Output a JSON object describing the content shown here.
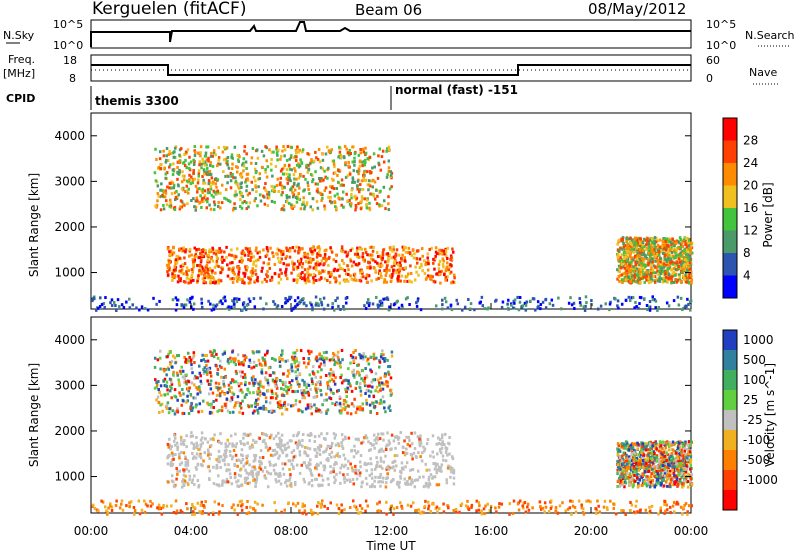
{
  "header": {
    "station": "Kerguelen (fitACF)",
    "beam": "Beam 06",
    "date": "08/May/2012"
  },
  "top_panels": {
    "nsky_label": "N.Sky",
    "nsky_tick_hi": "10^5",
    "nsky_tick_lo": "10^0",
    "nsearch_label": "N.Search",
    "freq_label_1": "Freq.",
    "freq_label_2": "[MHz]",
    "freq_tick_hi": "18",
    "freq_tick_lo": "8",
    "nave_tick_hi": "60",
    "nave_tick_lo": "0",
    "nave_label": "Nave",
    "cpid_label": "CPID",
    "cpid_1": "themis 3300",
    "cpid_2": "normal (fast) -151"
  },
  "chart_data": [
    {
      "type": "heatmap",
      "quantity": "Power",
      "ylabel": "Slant Range [km]",
      "xlabel": "Time UT",
      "xlim": [
        "00:00",
        "24:00"
      ],
      "ylim": [
        200,
        4500
      ],
      "yticks": [
        1000,
        2000,
        3000,
        4000
      ],
      "colorbar": {
        "label": "Power [dB]",
        "ticks": [
          4,
          8,
          12,
          16,
          20,
          24,
          28
        ],
        "colors": [
          "#0000ff",
          "#2b55b0",
          "#4a9a6a",
          "#43c43f",
          "#f0c020",
          "#ff8c00",
          "#ff4000",
          "#ff0000"
        ]
      },
      "regions": [
        {
          "t0": 3.0,
          "t1": 14.5,
          "r0": 800,
          "r1": 1600,
          "level": "high"
        },
        {
          "t0": 2.5,
          "t1": 12.0,
          "r0": 2400,
          "r1": 3800,
          "level": "medium"
        },
        {
          "t0": 21.0,
          "t1": 24.0,
          "r0": 800,
          "r1": 1800,
          "level": "medium"
        },
        {
          "t0": 0.0,
          "t1": 24.0,
          "r0": 200,
          "r1": 500,
          "level": "low"
        }
      ]
    },
    {
      "type": "heatmap",
      "quantity": "Velocity",
      "ylabel": "Slant Range [km]",
      "xlabel": "Time UT",
      "xlim": [
        "00:00",
        "24:00"
      ],
      "ylim": [
        200,
        4500
      ],
      "yticks": [
        1000,
        2000,
        3000,
        4000
      ],
      "xticks": [
        "00:00",
        "04:00",
        "08:00",
        "12:00",
        "16:00",
        "20:00",
        "00:00"
      ],
      "colorbar": {
        "label": "Velocity [m s^-1]",
        "ticks": [
          1000,
          500,
          100,
          25,
          -25,
          -100,
          -500,
          -1000
        ],
        "colors": [
          "#2040c0",
          "#3080a0",
          "#40b060",
          "#60d040",
          "#c0c0c0",
          "#f0b020",
          "#ff8000",
          "#ff4000",
          "#ff0000"
        ]
      },
      "regions": [
        {
          "t0": 3.0,
          "t1": 14.5,
          "r0": 800,
          "r1": 2000,
          "level": "ground-scatter"
        },
        {
          "t0": 2.5,
          "t1": 12.0,
          "r0": 2400,
          "r1": 3800,
          "level": "mixed"
        },
        {
          "t0": 21.0,
          "t1": 24.0,
          "r0": 800,
          "r1": 1800,
          "level": "mixed"
        },
        {
          "t0": 0.0,
          "t1": 24.0,
          "r0": 200,
          "r1": 500,
          "level": "negative"
        }
      ]
    }
  ],
  "colors": {
    "frame": "#000000",
    "ground_scatter": "#c0c0c0"
  }
}
